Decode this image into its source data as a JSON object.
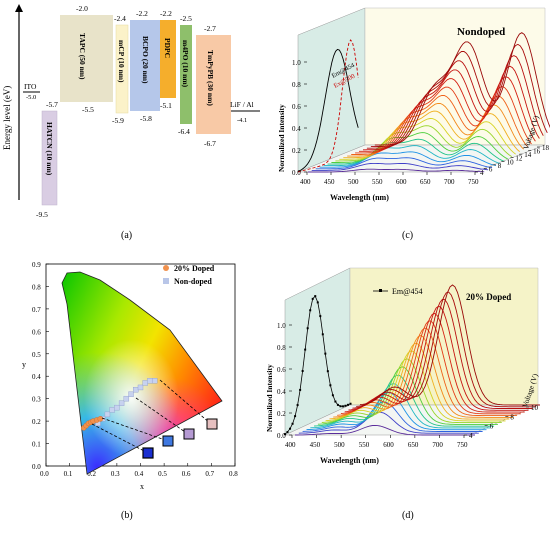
{
  "panel_labels": {
    "a": "(a)",
    "b": "(b)",
    "c": "(c)",
    "d": "(d)"
  },
  "colors": {
    "tapc": "#e8e3c9",
    "mcp": "#fbf2c9",
    "bcpo": "#b5c7ea",
    "pdpc": "#f5ae2c",
    "m4po": "#8ebf6b",
    "tmpypb": "#f8c9a6",
    "hatcn": "#d9cde3",
    "curve_accent": "#cc0000",
    "wall": "#d8ece6",
    "wall_d": "#f5f3c8"
  },
  "panel_a": {
    "ylabel": "Energy level (eV)",
    "layers": [
      {
        "name": "HATCN (10 nm)",
        "top": "-5.7",
        "bottom": "-9.5",
        "lumo": -5.7,
        "homo": -9.5
      },
      {
        "name": "TAPC (50 nm)",
        "top": "-2.0",
        "bottom": "-5.5",
        "lumo": -2.0,
        "homo": -5.5
      },
      {
        "name": "mCP (10 nm)",
        "top": "-2.4",
        "bottom": "-5.9",
        "lumo": -2.4,
        "homo": -5.9
      },
      {
        "name": "BCPO (20 nm)",
        "top": "-2.2",
        "bottom": "-5.8",
        "lumo": -2.2,
        "homo": -5.8
      },
      {
        "name": "PDPC",
        "top": "-2.2",
        "bottom": "-5.1",
        "lumo": -2.2,
        "homo": -5.1
      },
      {
        "name": "m4PO (10 nm)",
        "top": "-2.5",
        "bottom": "-6.4",
        "lumo": -2.5,
        "homo": -6.4
      },
      {
        "name": "TmPyPB (30 nm)",
        "top": "-2.7",
        "bottom": "-6.7",
        "lumo": -2.7,
        "homo": -6.7
      }
    ],
    "ito": {
      "name": "ITO",
      "value": "-5.0"
    },
    "cathode": {
      "name": "LiF / Al",
      "value": "-4.1"
    }
  },
  "panel_b": {
    "xlabel": "x",
    "ylabel": "y",
    "xticks": [
      "0.0",
      "0.1",
      "0.2",
      "0.3",
      "0.4",
      "0.5",
      "0.6",
      "0.7",
      "0.8"
    ],
    "yticks": [
      "0.0",
      "0.1",
      "0.2",
      "0.3",
      "0.4",
      "0.5",
      "0.6",
      "0.7",
      "0.8",
      "0.9"
    ],
    "legend": [
      "20% Doped",
      "Non-doped"
    ],
    "doped_points": [
      [
        0.16,
        0.17
      ],
      [
        0.17,
        0.18
      ],
      [
        0.18,
        0.19
      ],
      [
        0.19,
        0.195
      ],
      [
        0.2,
        0.2
      ],
      [
        0.215,
        0.205
      ],
      [
        0.23,
        0.21
      ]
    ],
    "nondoped_points": [
      [
        0.22,
        0.19
      ],
      [
        0.24,
        0.21
      ],
      [
        0.26,
        0.23
      ],
      [
        0.28,
        0.25
      ],
      [
        0.3,
        0.26
      ],
      [
        0.32,
        0.28
      ],
      [
        0.34,
        0.3
      ],
      [
        0.36,
        0.32
      ],
      [
        0.38,
        0.34
      ],
      [
        0.4,
        0.35
      ],
      [
        0.42,
        0.37
      ],
      [
        0.44,
        0.38
      ],
      [
        0.46,
        0.38
      ]
    ]
  },
  "panel_c": {
    "title": "Nondoped",
    "xlabel": "Wavelength (nm)",
    "ylabel": "Normalized Intensity",
    "zlabel": "Voltage (V)",
    "xticks": [
      "400",
      "450",
      "500",
      "550",
      "600",
      "650",
      "700",
      "750"
    ],
    "yticks": [
      "0.0",
      "0.2",
      "0.4",
      "0.6",
      "0.8",
      "1.0"
    ],
    "zticks": [
      "4",
      "6",
      "8",
      "10",
      "12",
      "14",
      "16",
      "18"
    ],
    "wall_labels": [
      "Em@454",
      "Ex@500"
    ]
  },
  "panel_d": {
    "title": "20% Doped",
    "xlabel": "Wavelength (nm)",
    "ylabel": "Normalized Intensity",
    "zlabel": "Voltage (V)",
    "xticks": [
      "400",
      "450",
      "500",
      "550",
      "600",
      "650",
      "700",
      "750"
    ],
    "yticks": [
      "0.0",
      "0.2",
      "0.4",
      "0.6",
      "0.8",
      "1.0"
    ],
    "zticks": [
      "4",
      "6",
      "8",
      "10"
    ],
    "legend": "Em@454"
  }
}
